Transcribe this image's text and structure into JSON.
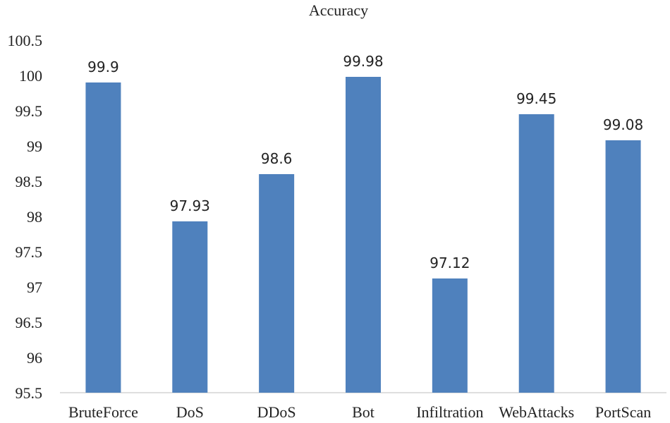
{
  "chart_data": {
    "type": "bar",
    "title": "Accuracy",
    "xlabel": "",
    "ylabel": "",
    "categories": [
      "BruteForce",
      "DoS",
      "DDoS",
      "Bot",
      "Infiltration",
      "WebAttacks",
      "PortScan"
    ],
    "values": [
      99.9,
      97.93,
      98.6,
      99.98,
      97.12,
      99.45,
      99.08
    ],
    "value_labels": [
      "99.9",
      "97.93",
      "98.6",
      "99.98",
      "97.12",
      "99.45",
      "99.08"
    ],
    "ylim": [
      95.5,
      100.5
    ],
    "yticks": [
      "95.5",
      "96",
      "96.5",
      "97",
      "97.5",
      "98",
      "98.5",
      "99",
      "99.5",
      "100",
      "100.5"
    ],
    "grid": false,
    "bar_color": "#4f81bd"
  }
}
